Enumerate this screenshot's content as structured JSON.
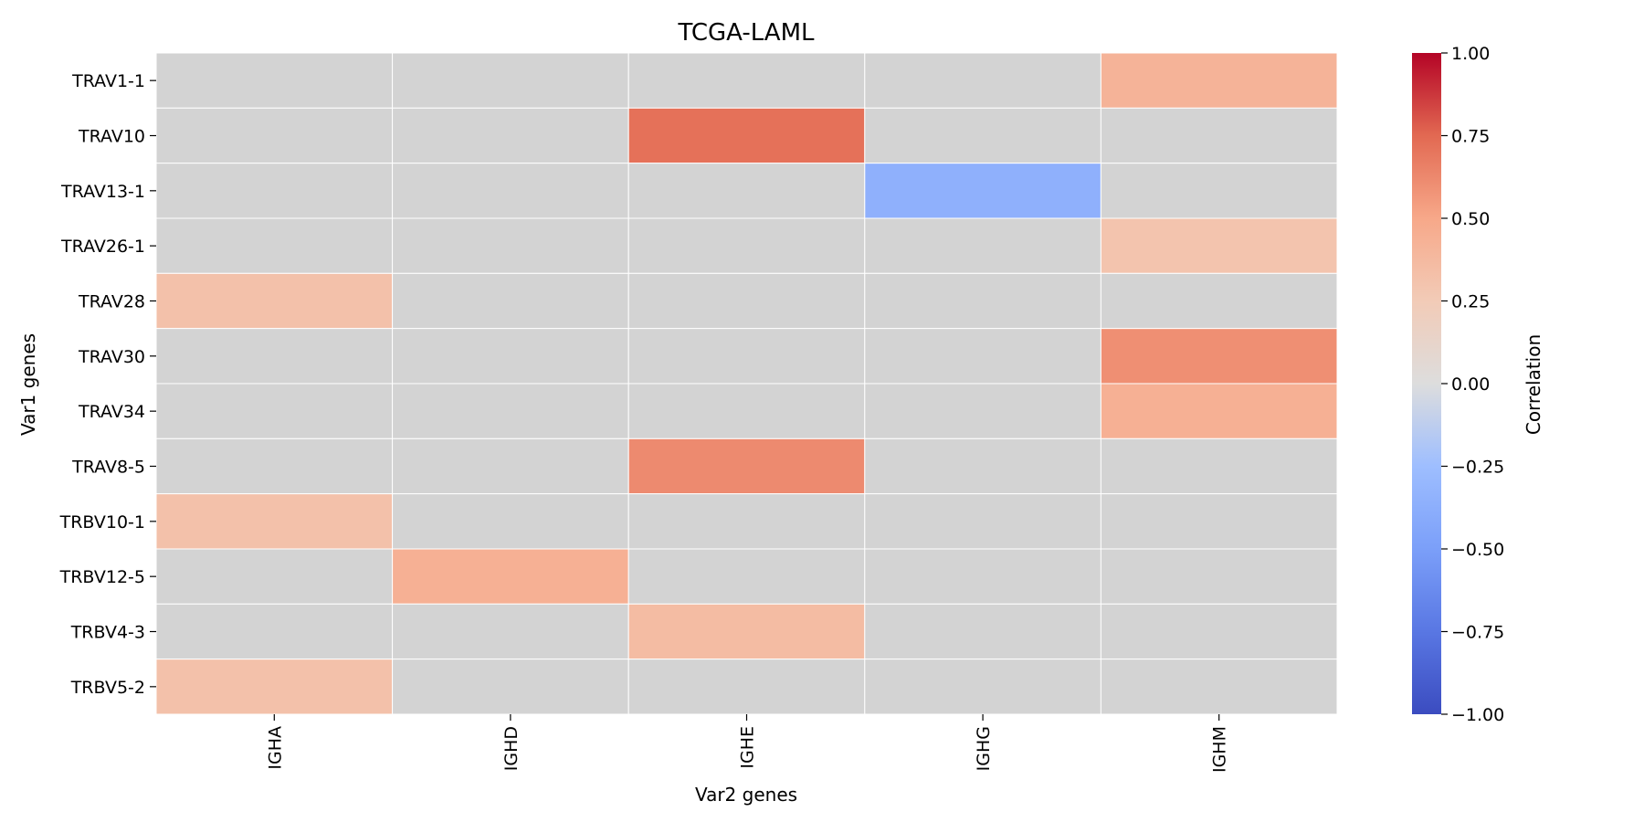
{
  "chart_data": {
    "type": "heatmap",
    "title": "TCGA-LAML",
    "xlabel": "Var2 genes",
    "ylabel": "Var1 genes",
    "x_categories": [
      "IGHA",
      "IGHD",
      "IGHE",
      "IGHG",
      "IGHM"
    ],
    "y_categories": [
      "TRAV1-1",
      "TRAV10",
      "TRAV13-1",
      "TRAV26-1",
      "TRAV28",
      "TRAV30",
      "TRAV34",
      "TRAV8-5",
      "TRBV10-1",
      "TRBV12-5",
      "TRBV4-3",
      "TRBV5-2"
    ],
    "values": [
      [
        null,
        null,
        null,
        null,
        0.42
      ],
      [
        null,
        null,
        0.72,
        null,
        null
      ],
      [
        null,
        null,
        null,
        -0.36,
        null
      ],
      [
        null,
        null,
        null,
        null,
        0.3
      ],
      [
        0.32,
        null,
        null,
        null,
        null
      ],
      [
        null,
        null,
        null,
        null,
        0.6
      ],
      [
        null,
        null,
        null,
        null,
        0.44
      ],
      [
        null,
        null,
        0.62,
        null,
        null
      ],
      [
        0.32,
        null,
        null,
        null,
        null
      ],
      [
        null,
        0.44,
        null,
        null,
        null
      ],
      [
        null,
        null,
        0.36,
        null,
        null
      ],
      [
        0.32,
        null,
        null,
        null,
        null
      ]
    ],
    "missing_color": "#d3d3d3",
    "colormap": "coolwarm",
    "vmin": -1.0,
    "vmax": 1.0,
    "colorbar": {
      "label": "Correlation",
      "ticks": [
        "1.00",
        "0.75",
        "0.50",
        "0.25",
        "0.00",
        "−0.25",
        "−0.50",
        "−0.75",
        "−1.00"
      ]
    }
  }
}
